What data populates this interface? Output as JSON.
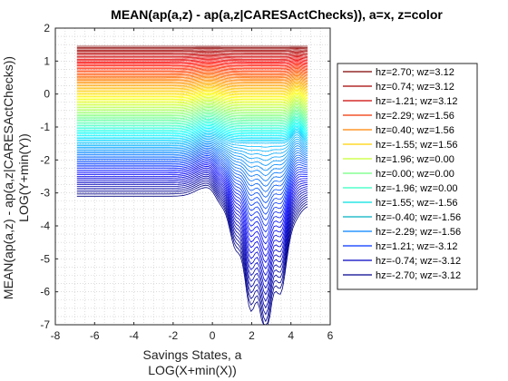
{
  "chart_data": {
    "type": "line",
    "title": "MEAN(ap(a,z) - ap(a,z|CARESActChecks)), a=x, z=color",
    "xlabel": [
      "Savings States, a",
      "LOG(X+min(X))"
    ],
    "ylabel": [
      "MEAN(ap(a,z) - ap(a,z|CARESActChecks))",
      "LOG(Y+min(Y))"
    ],
    "xlim": [
      -8,
      6
    ],
    "ylim": [
      -7,
      2
    ],
    "xticks": [
      "-8",
      "-6",
      "-4",
      "-2",
      "0",
      "2",
      "4",
      "6"
    ],
    "yticks": [
      "2",
      "1",
      "0",
      "-1",
      "-2",
      "-3",
      "-4",
      "-5",
      "-6",
      "-7"
    ],
    "grid": "minor-dotted",
    "legend_position": "right",
    "x_range_of_data": [
      -6.9,
      4.85
    ],
    "num_curves": 105,
    "top_value": 1.45,
    "bottom_value": -3.1,
    "legend": [
      {
        "label": "hz=2.70; wz=3.12",
        "color": "#7f0000"
      },
      {
        "label": "hz=0.74; wz=3.12",
        "color": "#a50000"
      },
      {
        "label": "hz=-1.21; wz=3.12",
        "color": "#cc0000"
      },
      {
        "label": "hz=2.29; wz=1.56",
        "color": "#f03000"
      },
      {
        "label": "hz=0.40; wz=1.56",
        "color": "#ff8000"
      },
      {
        "label": "hz=-1.55; wz=1.56",
        "color": "#ffd000"
      },
      {
        "label": "hz=1.96; wz=0.00",
        "color": "#c8ff30"
      },
      {
        "label": "hz=0.00; wz=0.00",
        "color": "#70ff80"
      },
      {
        "label": "hz=-1.96; wz=0.00",
        "color": "#30ffc0"
      },
      {
        "label": "hz=1.55; wz=-1.56",
        "color": "#00e0e0"
      },
      {
        "label": "hz=-0.40; wz=-1.56",
        "color": "#00b0c0"
      },
      {
        "label": "hz=-2.29; wz=-1.56",
        "color": "#0080ff"
      },
      {
        "label": "hz=1.21; wz=-3.12",
        "color": "#0030ff"
      },
      {
        "label": "hz=-0.74; wz=-3.12",
        "color": "#0000c0"
      },
      {
        "label": "hz=-2.70; wz=-3.12",
        "color": "#00008f"
      }
    ]
  }
}
